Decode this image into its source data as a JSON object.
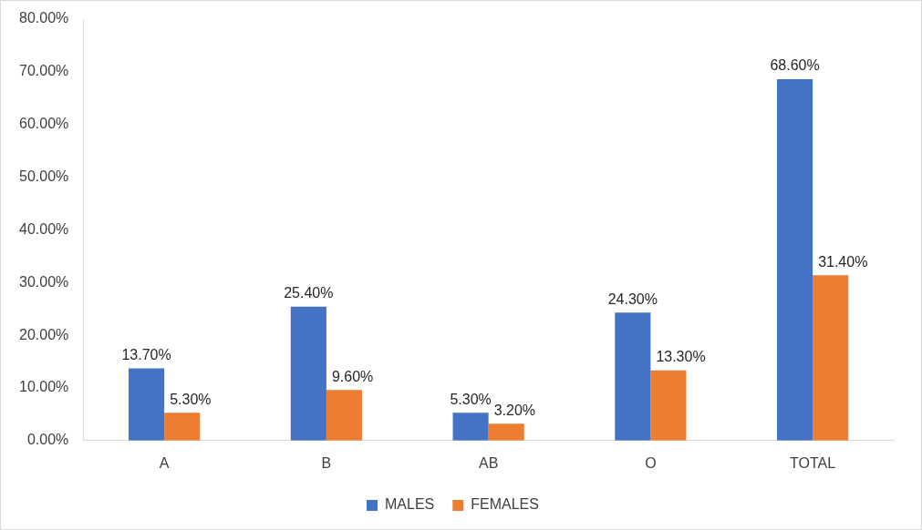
{
  "chart_data": {
    "type": "bar",
    "categories": [
      "A",
      "B",
      "AB",
      "O",
      "TOTAL"
    ],
    "series": [
      {
        "name": "MALES",
        "color": "#4472c4",
        "values": [
          13.7,
          25.4,
          5.3,
          24.3,
          68.6
        ],
        "value_labels": [
          "13.70%",
          "25.40%",
          "5.30%",
          "24.30%",
          "68.60%"
        ]
      },
      {
        "name": "FEMALES",
        "color": "#ed7d31",
        "values": [
          5.3,
          9.6,
          3.2,
          13.3,
          31.4
        ],
        "value_labels": [
          "5.30%",
          "9.60%",
          "3.20%",
          "13.30%",
          "31.40%"
        ]
      }
    ],
    "ylim": [
      0,
      80
    ],
    "yticks": [
      {
        "value": 0,
        "label": "0.00%"
      },
      {
        "value": 10,
        "label": "10.00%"
      },
      {
        "value": 20,
        "label": "20.00%"
      },
      {
        "value": 30,
        "label": "30.00%"
      },
      {
        "value": 40,
        "label": "40.00%"
      },
      {
        "value": 50,
        "label": "50.00%"
      },
      {
        "value": 60,
        "label": "60.00%"
      },
      {
        "value": 70,
        "label": "70.00%"
      },
      {
        "value": 80,
        "label": "80.00%"
      }
    ],
    "grid": false,
    "legend": "bottom",
    "data_labels": true
  }
}
